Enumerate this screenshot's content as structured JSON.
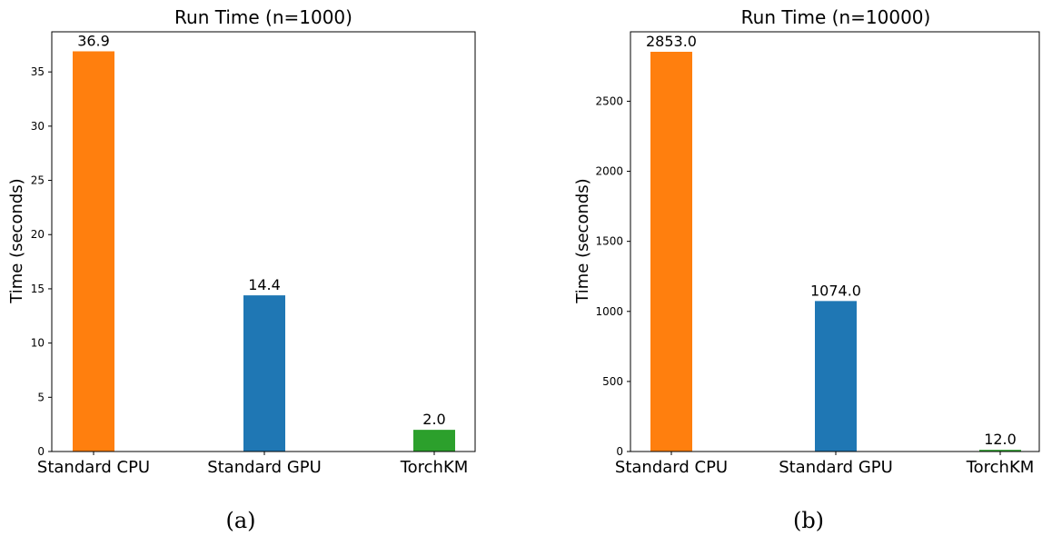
{
  "chart_data": [
    {
      "type": "bar",
      "title": "Run Time (n=1000)",
      "xlabel": "",
      "ylabel": "Time (seconds)",
      "categories": [
        "Standard CPU",
        "Standard GPU",
        "TorchKM"
      ],
      "values": [
        36.9,
        14.4,
        2.0
      ],
      "data_labels": [
        "36.9",
        "14.4",
        "2.0"
      ],
      "colors": [
        "#ff7f0e",
        "#1f77b4",
        "#2ca02c"
      ],
      "ylim": [
        0,
        38.7
      ],
      "yticks": [
        0,
        5,
        10,
        15,
        20,
        25,
        30,
        35
      ],
      "grid": false,
      "caption": "(a)"
    },
    {
      "type": "bar",
      "title": "Run Time (n=10000)",
      "xlabel": "",
      "ylabel": "Time (seconds)",
      "categories": [
        "Standard CPU",
        "Standard GPU",
        "TorchKM"
      ],
      "values": [
        2853.0,
        1074.0,
        12.0
      ],
      "data_labels": [
        "2853.0",
        "1074.0",
        "12.0"
      ],
      "colors": [
        "#ff7f0e",
        "#1f77b4",
        "#2ca02c"
      ],
      "ylim": [
        0,
        2995.6
      ],
      "yticks": [
        0,
        500,
        1000,
        1500,
        2000,
        2500
      ],
      "grid": false,
      "caption": "(b)"
    }
  ]
}
